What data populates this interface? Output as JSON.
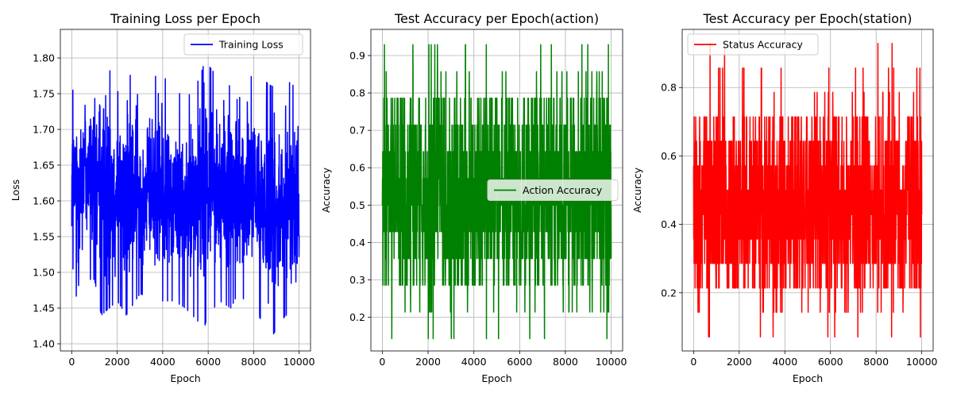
{
  "chart_data": [
    {
      "type": "line",
      "title": "Training Loss per Epoch",
      "xlabel": "Epoch",
      "ylabel": "Loss",
      "xlim": [
        -500,
        10500
      ],
      "ylim": [
        1.39,
        1.84
      ],
      "xticks": [
        0,
        2000,
        4000,
        6000,
        8000,
        10000
      ],
      "yticks": [
        1.4,
        1.45,
        1.5,
        1.55,
        1.6,
        1.65,
        1.7,
        1.75,
        1.8
      ],
      "yprec": 2,
      "grid": true,
      "legend": "upper-right",
      "series": [
        {
          "name": "Training Loss",
          "color": "#0000ff",
          "x_start": 0,
          "x_end": 10000,
          "envelope": {
            "x": [
              0,
              300,
              500,
              1000,
              1300,
              2000,
              2400,
              3000,
              3800,
              4500,
              5000,
              5600,
              5800,
              6000,
              6500,
              7000,
              7300,
              8000,
              8800,
              9400,
              9800,
              10000
            ],
            "max": [
              1.75,
              1.78,
              1.82,
              1.76,
              1.82,
              1.75,
              1.79,
              1.74,
              1.78,
              1.76,
              1.74,
              1.77,
              1.79,
              1.79,
              1.77,
              1.76,
              1.74,
              1.78,
              1.76,
              1.77,
              1.76,
              1.72
            ],
            "min": [
              1.52,
              1.44,
              1.49,
              1.49,
              1.44,
              1.46,
              1.44,
              1.47,
              1.46,
              1.46,
              1.45,
              1.43,
              1.42,
              1.44,
              1.46,
              1.45,
              1.47,
              1.45,
              1.41,
              1.44,
              1.44,
              1.46
            ]
          }
        }
      ]
    },
    {
      "type": "line",
      "title": "Test Accuracy per Epoch(action)",
      "xlabel": "Epoch",
      "ylabel": "Accuracy",
      "xlim": [
        -500,
        10500
      ],
      "ylim": [
        0.11,
        0.97
      ],
      "xticks": [
        0,
        2000,
        4000,
        6000,
        8000,
        10000
      ],
      "yticks": [
        0.2,
        0.3,
        0.4,
        0.5,
        0.6,
        0.7,
        0.8,
        0.9
      ],
      "yprec": 1,
      "grid": true,
      "legend": "center-right",
      "series": [
        {
          "name": "Action Accuracy",
          "color": "#008000",
          "x_start": 0,
          "x_end": 10000,
          "levels": [
            0.143,
            0.214,
            0.286,
            0.357,
            0.429,
            0.5,
            0.571,
            0.643,
            0.714,
            0.786,
            0.857,
            0.929
          ],
          "weights": [
            1,
            2,
            8,
            16,
            20,
            20,
            18,
            14,
            10,
            8,
            2,
            1
          ]
        }
      ]
    },
    {
      "type": "line",
      "title": "Test Accuracy per Epoch(station)",
      "xlabel": "Epoch",
      "ylabel": "Accuracy",
      "xlim": [
        -500,
        10500
      ],
      "ylim": [
        0.03,
        0.97
      ],
      "xticks": [
        0,
        2000,
        4000,
        6000,
        8000,
        10000
      ],
      "yticks": [
        0.2,
        0.4,
        0.6,
        0.8
      ],
      "yprec": 1,
      "grid": true,
      "legend": "upper-left",
      "series": [
        {
          "name": "Status Accuracy",
          "color": "#ff0000",
          "x_start": 0,
          "x_end": 10000,
          "levels": [
            0.071,
            0.143,
            0.214,
            0.286,
            0.357,
            0.429,
            0.5,
            0.571,
            0.643,
            0.714,
            0.786,
            0.857,
            0.929
          ],
          "weights": [
            1,
            2,
            10,
            16,
            20,
            20,
            18,
            14,
            10,
            8,
            2,
            1,
            0.3
          ]
        }
      ]
    }
  ]
}
